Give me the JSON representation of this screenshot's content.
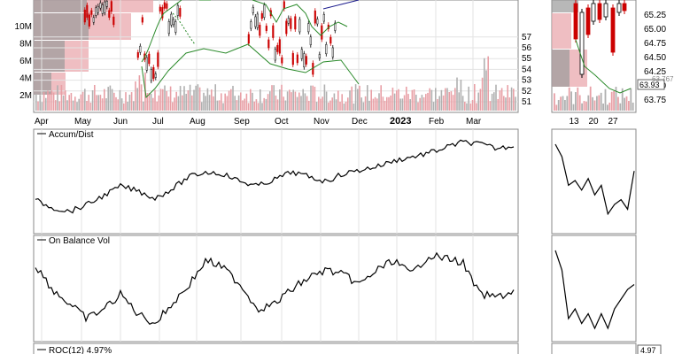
{
  "chart_data": [
    {
      "type": "bar",
      "panel": "price-volume",
      "volume_ticks": [
        "2M",
        "4M",
        "6M",
        "8M",
        "10M"
      ],
      "price_ticks_main": [
        "51",
        "52",
        "53",
        "54",
        "55",
        "56",
        "57"
      ],
      "price_ticks_zoom": [
        "63.75",
        "64.00",
        "64.25",
        "64.50",
        "64.75",
        "65.00",
        "65.25"
      ],
      "month_labels": [
        "Apr",
        "May",
        "Jun",
        "Jul",
        "Aug",
        "Sep",
        "Oct",
        "Nov",
        "Dec",
        "2023",
        "Feb",
        "Mar"
      ],
      "zoom_date_labels": [
        "13",
        "20",
        "27"
      ],
      "last_price_tag": "63.93",
      "last_price_tag_extra": "63.767",
      "colors": {
        "up": "#000000",
        "down": "#cc0000",
        "volume_up": "#b0b0b0",
        "volume_down": "#e8a0a6",
        "band": "#2a8a2a",
        "ma": "#1a1a8c"
      }
    },
    {
      "type": "line",
      "panel": "accum-dist",
      "legend": "Accum/Dist",
      "values": [
        0.3,
        0.22,
        0.18,
        0.25,
        0.35,
        0.45,
        0.4,
        0.32,
        0.42,
        0.55,
        0.6,
        0.58,
        0.5,
        0.45,
        0.52,
        0.6,
        0.55,
        0.5,
        0.58,
        0.62,
        0.66,
        0.72,
        0.76,
        0.8,
        0.86,
        0.92,
        0.9,
        0.85,
        0.88
      ],
      "zoom_values": [
        0.88,
        0.75,
        0.45,
        0.5,
        0.4,
        0.52,
        0.35,
        0.45,
        0.15,
        0.25,
        0.3,
        0.2,
        0.6
      ]
    },
    {
      "type": "line",
      "panel": "on-balance-volume",
      "legend": "On Balance Vol",
      "values": [
        0.75,
        0.5,
        0.35,
        0.2,
        0.3,
        0.45,
        0.25,
        0.15,
        0.35,
        0.55,
        0.8,
        0.72,
        0.55,
        0.3,
        0.35,
        0.5,
        0.62,
        0.7,
        0.65,
        0.55,
        0.7,
        0.8,
        0.65,
        0.85,
        0.82,
        0.78,
        0.45,
        0.42,
        0.48
      ],
      "zoom_values": [
        0.9,
        0.7,
        0.2,
        0.3,
        0.15,
        0.25,
        0.1,
        0.25,
        0.1,
        0.3,
        0.4,
        0.5,
        0.55
      ]
    },
    {
      "type": "line",
      "panel": "roc",
      "legend": "ROC(12) 4.97%",
      "zoom_tag": "4.97"
    }
  ]
}
